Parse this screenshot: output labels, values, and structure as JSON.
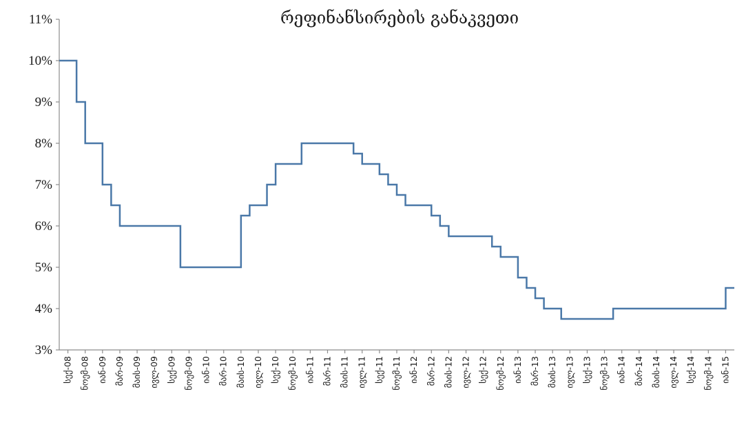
{
  "chart_data": {
    "type": "line",
    "title": "რეფინანსირების განაკვეთი",
    "ylim": [
      3,
      11
    ],
    "y_ticks": [
      3,
      4,
      5,
      6,
      7,
      8,
      9,
      10,
      11
    ],
    "y_tick_labels": [
      "3%",
      "4%",
      "5%",
      "6%",
      "7%",
      "8%",
      "9%",
      "10%",
      "11%"
    ],
    "x_tick_labels": [
      "სექ-08",
      "ნოემ-08",
      "იან-09",
      "მარ-09",
      "მაის-09",
      "ივლ-09",
      "სექ-09",
      "ნოემ-09",
      "იან-10",
      "მარ-10",
      "მაის-10",
      "ივლ-10",
      "სექ-10",
      "ნოემ-10",
      "იან-11",
      "მარ-11",
      "მაის-11",
      "ივლ-11",
      "სექ-11",
      "ნოემ-11",
      "იან-12",
      "მარ-12",
      "მაის-12",
      "ივლ-12",
      "სექ-12",
      "ნოემ-12",
      "იან-13",
      "მარ-13",
      "მაის-13",
      "ივლ-13",
      "სექ-13",
      "ნოემ-13",
      "იან-14",
      "მარ-14",
      "მაის-14",
      "ივლ-14",
      "სექ-14",
      "ნოემ-14",
      "იან-15"
    ],
    "grid": false,
    "legend": "none",
    "series": [
      {
        "color": "#4a78a8",
        "x": [
          "2008-09",
          "2008-10",
          "2008-11",
          "2008-12",
          "2009-01",
          "2009-02",
          "2009-03",
          "2009-04",
          "2009-05",
          "2009-06",
          "2009-07",
          "2009-08",
          "2009-09",
          "2009-10",
          "2009-11",
          "2009-12",
          "2010-01",
          "2010-02",
          "2010-03",
          "2010-04",
          "2010-05",
          "2010-06",
          "2010-07",
          "2010-08",
          "2010-09",
          "2010-10",
          "2010-11",
          "2010-12",
          "2011-01",
          "2011-02",
          "2011-03",
          "2011-04",
          "2011-05",
          "2011-06",
          "2011-07",
          "2011-08",
          "2011-09",
          "2011-10",
          "2011-11",
          "2011-12",
          "2012-01",
          "2012-02",
          "2012-03",
          "2012-04",
          "2012-05",
          "2012-06",
          "2012-07",
          "2012-08",
          "2012-09",
          "2012-10",
          "2012-11",
          "2012-12",
          "2013-01",
          "2013-02",
          "2013-03",
          "2013-04",
          "2013-05",
          "2013-06",
          "2013-07",
          "2013-08",
          "2013-09",
          "2013-10",
          "2013-11",
          "2013-12",
          "2014-01",
          "2014-02",
          "2014-03",
          "2014-04",
          "2014-05",
          "2014-06",
          "2014-07",
          "2014-08",
          "2014-09",
          "2014-10",
          "2014-11",
          "2014-12",
          "2015-01",
          "2015-02"
        ],
        "values": [
          10,
          10,
          9,
          8,
          8,
          7,
          6.5,
          6,
          6,
          6,
          6,
          6,
          6,
          6,
          5,
          5,
          5,
          5,
          5,
          5,
          5,
          6.25,
          6.5,
          6.5,
          7,
          7.5,
          7.5,
          7.5,
          8,
          8,
          8,
          8,
          8,
          8,
          7.75,
          7.5,
          7.5,
          7.25,
          7,
          6.75,
          6.5,
          6.5,
          6.5,
          6.25,
          6,
          5.75,
          5.75,
          5.75,
          5.75,
          5.75,
          5.5,
          5.25,
          5.25,
          4.75,
          4.5,
          4.25,
          4,
          4,
          3.75,
          3.75,
          3.75,
          3.75,
          3.75,
          3.75,
          4,
          4,
          4,
          4,
          4,
          4,
          4,
          4,
          4,
          4,
          4,
          4,
          4,
          4.5
        ]
      }
    ]
  }
}
